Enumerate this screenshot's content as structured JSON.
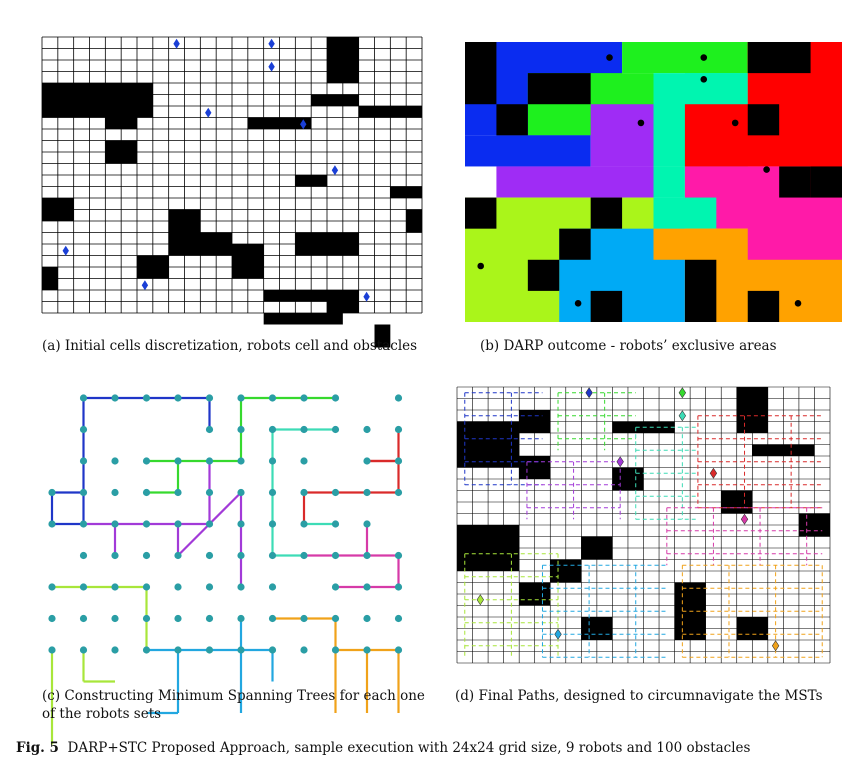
{
  "figure": {
    "label": "Fig. 5",
    "caption": "DARP+STC Proposed Approach, sample execution with 24x24 grid size, 9 robots and 100 obstacles"
  },
  "panels": {
    "a": {
      "caption": "(a) Initial cells discretization, robots cell and obstacles"
    },
    "b": {
      "caption": "(b) DARP outcome - robots’ exclusive areas"
    },
    "c": {
      "caption": "(c) Constructing Minimum Spanning Trees for each one of the robots sets"
    },
    "d": {
      "caption": "(d) Final Paths, designed to circumnavigate the MSTs"
    }
  },
  "colors": {
    "robot_marker": "#1a3fd6",
    "obstacle": "#000000",
    "areas": [
      "#0a2cf0",
      "#1ef01e",
      "#00f5b0",
      "#ff0000",
      "#9f2cf5",
      "#ff1aa8",
      "#aaf51a",
      "#00aaf5",
      "#ffa200"
    ],
    "trees": [
      "#1f36c8",
      "#36d92e",
      "#3ddcb6",
      "#d92a2a",
      "#a23ad8",
      "#d63aa8",
      "#a8e63a",
      "#22a7e0",
      "#f0a21a"
    ],
    "node": "#2a9ea5"
  }
}
